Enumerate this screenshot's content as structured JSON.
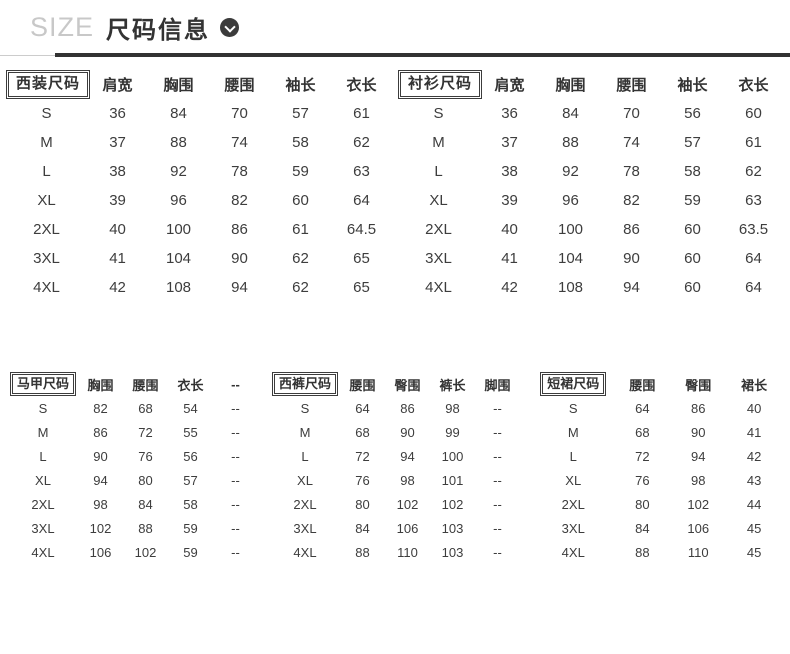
{
  "header": {
    "size_label": "SIZE",
    "title": "尺码信息",
    "chevron_icon": "chevron-down-circle"
  },
  "colors": {
    "size_label": "#c8c8c8",
    "title": "#333333",
    "underline": "#323232",
    "table_text": "#3d3d3d"
  },
  "tables": [
    {
      "label": "西装尺码",
      "columns": [
        "肩宽",
        "胸围",
        "腰围",
        "袖长",
        "衣长"
      ],
      "rows": [
        {
          "size": "S",
          "values": [
            "36",
            "84",
            "70",
            "57",
            "61"
          ]
        },
        {
          "size": "M",
          "values": [
            "37",
            "88",
            "74",
            "58",
            "62"
          ]
        },
        {
          "size": "L",
          "values": [
            "38",
            "92",
            "78",
            "59",
            "63"
          ]
        },
        {
          "size": "XL",
          "values": [
            "39",
            "96",
            "82",
            "60",
            "64"
          ]
        },
        {
          "size": "2XL",
          "values": [
            "40",
            "100",
            "86",
            "61",
            "64.5"
          ]
        },
        {
          "size": "3XL",
          "values": [
            "41",
            "104",
            "90",
            "62",
            "65"
          ]
        },
        {
          "size": "4XL",
          "values": [
            "42",
            "108",
            "94",
            "62",
            "65"
          ]
        }
      ]
    },
    {
      "label": "衬衫尺码",
      "columns": [
        "肩宽",
        "胸围",
        "腰围",
        "袖长",
        "衣长"
      ],
      "rows": [
        {
          "size": "S",
          "values": [
            "36",
            "84",
            "70",
            "56",
            "60"
          ]
        },
        {
          "size": "M",
          "values": [
            "37",
            "88",
            "74",
            "57",
            "61"
          ]
        },
        {
          "size": "L",
          "values": [
            "38",
            "92",
            "78",
            "58",
            "62"
          ]
        },
        {
          "size": "XL",
          "values": [
            "39",
            "96",
            "82",
            "59",
            "63"
          ]
        },
        {
          "size": "2XL",
          "values": [
            "40",
            "100",
            "86",
            "60",
            "63.5"
          ]
        },
        {
          "size": "3XL",
          "values": [
            "41",
            "104",
            "90",
            "60",
            "64"
          ]
        },
        {
          "size": "4XL",
          "values": [
            "42",
            "108",
            "94",
            "60",
            "64"
          ]
        }
      ]
    },
    {
      "label": "马甲尺码",
      "columns": [
        "胸围",
        "腰围",
        "衣长",
        "--"
      ],
      "rows": [
        {
          "size": "S",
          "values": [
            "82",
            "68",
            "54",
            "--"
          ]
        },
        {
          "size": "M",
          "values": [
            "86",
            "72",
            "55",
            "--"
          ]
        },
        {
          "size": "L",
          "values": [
            "90",
            "76",
            "56",
            "--"
          ]
        },
        {
          "size": "XL",
          "values": [
            "94",
            "80",
            "57",
            "--"
          ]
        },
        {
          "size": "2XL",
          "values": [
            "98",
            "84",
            "58",
            "--"
          ]
        },
        {
          "size": "3XL",
          "values": [
            "102",
            "88",
            "59",
            "--"
          ]
        },
        {
          "size": "4XL",
          "values": [
            "106",
            "102",
            "59",
            "--"
          ]
        }
      ]
    },
    {
      "label": "西裤尺码",
      "columns": [
        "腰围",
        "臀围",
        "裤长",
        "脚围"
      ],
      "rows": [
        {
          "size": "S",
          "values": [
            "64",
            "86",
            "98",
            "--"
          ]
        },
        {
          "size": "M",
          "values": [
            "68",
            "90",
            "99",
            "--"
          ]
        },
        {
          "size": "L",
          "values": [
            "72",
            "94",
            "100",
            "--"
          ]
        },
        {
          "size": "XL",
          "values": [
            "76",
            "98",
            "101",
            "--"
          ]
        },
        {
          "size": "2XL",
          "values": [
            "80",
            "102",
            "102",
            "--"
          ]
        },
        {
          "size": "3XL",
          "values": [
            "84",
            "106",
            "103",
            "--"
          ]
        },
        {
          "size": "4XL",
          "values": [
            "88",
            "110",
            "103",
            "--"
          ]
        }
      ]
    },
    {
      "label": "短裙尺码",
      "columns": [
        "腰围",
        "臀围",
        "裙长"
      ],
      "rows": [
        {
          "size": "S",
          "values": [
            "64",
            "86",
            "40"
          ]
        },
        {
          "size": "M",
          "values": [
            "68",
            "90",
            "41"
          ]
        },
        {
          "size": "L",
          "values": [
            "72",
            "94",
            "42"
          ]
        },
        {
          "size": "XL",
          "values": [
            "76",
            "98",
            "43"
          ]
        },
        {
          "size": "2XL",
          "values": [
            "80",
            "102",
            "44"
          ]
        },
        {
          "size": "3XL",
          "values": [
            "84",
            "106",
            "45"
          ]
        },
        {
          "size": "4XL",
          "values": [
            "88",
            "110",
            "45"
          ]
        }
      ]
    }
  ]
}
